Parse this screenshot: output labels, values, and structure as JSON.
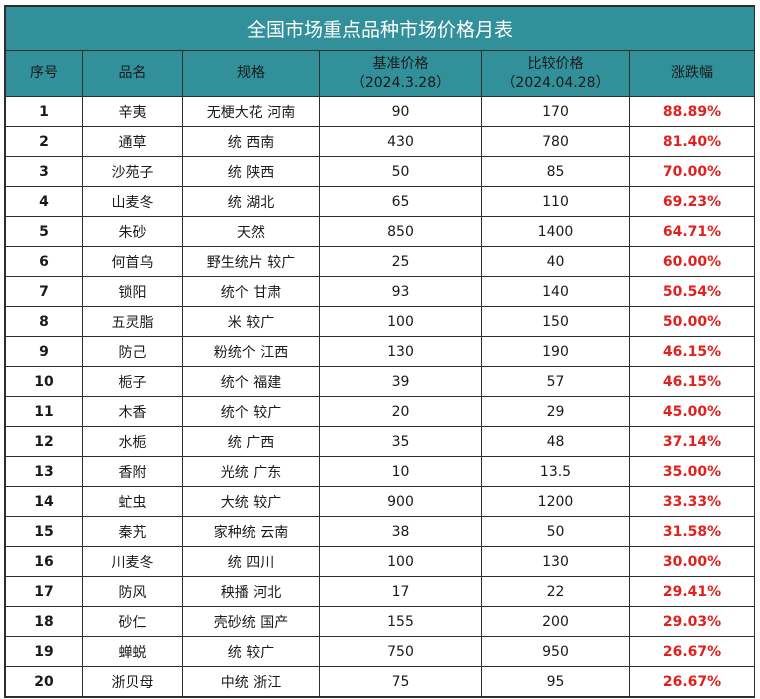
{
  "title": "全国市场重点品种市场价格月表",
  "headers": {
    "index": "序号",
    "name": "品名",
    "spec": "规格",
    "base_price": "基准价格",
    "base_date": "（2024.3.28）",
    "compare_price": "比较价格",
    "compare_date": "（2024.04.28）",
    "change": "涨跌幅"
  },
  "colors": {
    "header_bg": "#31909a",
    "title_text": "#ffffff",
    "change_text": "#e0211d",
    "grid": "#2e2e2e"
  },
  "rows": [
    {
      "index": "1",
      "name": "辛夷",
      "spec": "无梗大花 河南",
      "base": "90",
      "compare": "170",
      "change": "88.89%"
    },
    {
      "index": "2",
      "name": "通草",
      "spec": "统 西南",
      "base": "430",
      "compare": "780",
      "change": "81.40%"
    },
    {
      "index": "3",
      "name": "沙苑子",
      "spec": "统 陕西",
      "base": "50",
      "compare": "85",
      "change": "70.00%"
    },
    {
      "index": "4",
      "name": "山麦冬",
      "spec": "统 湖北",
      "base": "65",
      "compare": "110",
      "change": "69.23%"
    },
    {
      "index": "5",
      "name": "朱砂",
      "spec": "天然",
      "base": "850",
      "compare": "1400",
      "change": "64.71%"
    },
    {
      "index": "6",
      "name": "何首乌",
      "spec": "野生统片 较广",
      "base": "25",
      "compare": "40",
      "change": "60.00%"
    },
    {
      "index": "7",
      "name": "锁阳",
      "spec": "统个 甘肃",
      "base": "93",
      "compare": "140",
      "change": "50.54%"
    },
    {
      "index": "8",
      "name": "五灵脂",
      "spec": "米 较广",
      "base": "100",
      "compare": "150",
      "change": "50.00%"
    },
    {
      "index": "9",
      "name": "防己",
      "spec": "粉统个 江西",
      "base": "130",
      "compare": "190",
      "change": "46.15%"
    },
    {
      "index": "10",
      "name": "栀子",
      "spec": "统个 福建",
      "base": "39",
      "compare": "57",
      "change": "46.15%"
    },
    {
      "index": "11",
      "name": "木香",
      "spec": "统个 较广",
      "base": "20",
      "compare": "29",
      "change": "45.00%"
    },
    {
      "index": "12",
      "name": "水栀",
      "spec": "统 广西",
      "base": "35",
      "compare": "48",
      "change": "37.14%"
    },
    {
      "index": "13",
      "name": "香附",
      "spec": "光统 广东",
      "base": "10",
      "compare": "13.5",
      "change": "35.00%"
    },
    {
      "index": "14",
      "name": "虻虫",
      "spec": "大统 较广",
      "base": "900",
      "compare": "1200",
      "change": "33.33%"
    },
    {
      "index": "15",
      "name": "秦艽",
      "spec": "家种统 云南",
      "base": "38",
      "compare": "50",
      "change": "31.58%"
    },
    {
      "index": "16",
      "name": "川麦冬",
      "spec": "统 四川",
      "base": "100",
      "compare": "130",
      "change": "30.00%"
    },
    {
      "index": "17",
      "name": "防风",
      "spec": "秧播 河北",
      "base": "17",
      "compare": "22",
      "change": "29.41%"
    },
    {
      "index": "18",
      "name": "砂仁",
      "spec": "壳砂统 国产",
      "base": "155",
      "compare": "200",
      "change": "29.03%"
    },
    {
      "index": "19",
      "name": "蝉蜕",
      "spec": "统 较广",
      "base": "750",
      "compare": "950",
      "change": "26.67%"
    },
    {
      "index": "20",
      "name": "浙贝母",
      "spec": "中统 浙江",
      "base": "75",
      "compare": "95",
      "change": "26.67%"
    }
  ]
}
